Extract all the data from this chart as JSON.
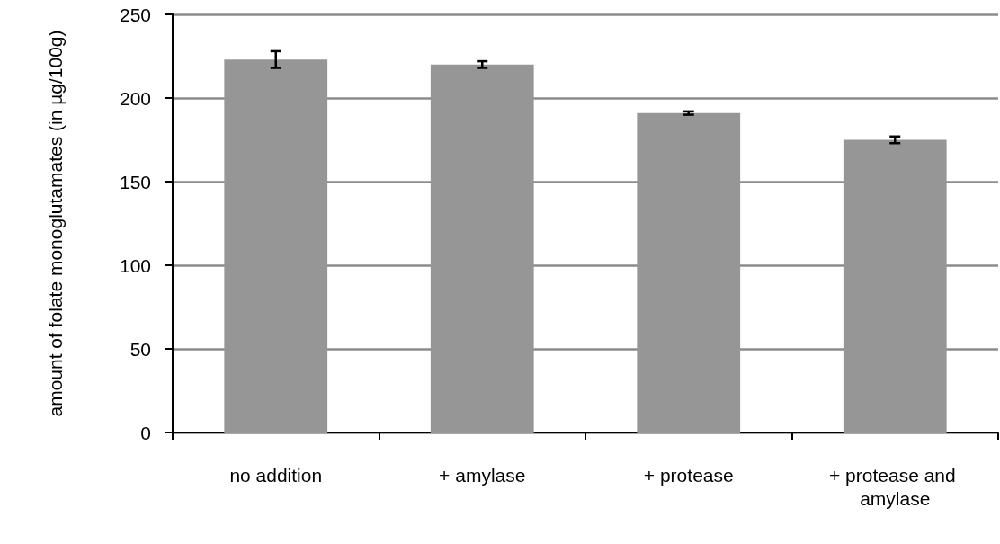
{
  "chart_data": {
    "type": "bar",
    "ylabel": "amount of folate monoglutamates (in µg/100g)",
    "categories": [
      "no addition",
      "+ amylase",
      "+ protease",
      "+ protease and amylase"
    ],
    "values": [
      223,
      220,
      191,
      175
    ],
    "errors": [
      5,
      2,
      1,
      2
    ],
    "color": "#969696",
    "ylim": [
      0,
      250
    ],
    "yticks": [
      0,
      50,
      100,
      150,
      200,
      250
    ],
    "grid": "y"
  }
}
